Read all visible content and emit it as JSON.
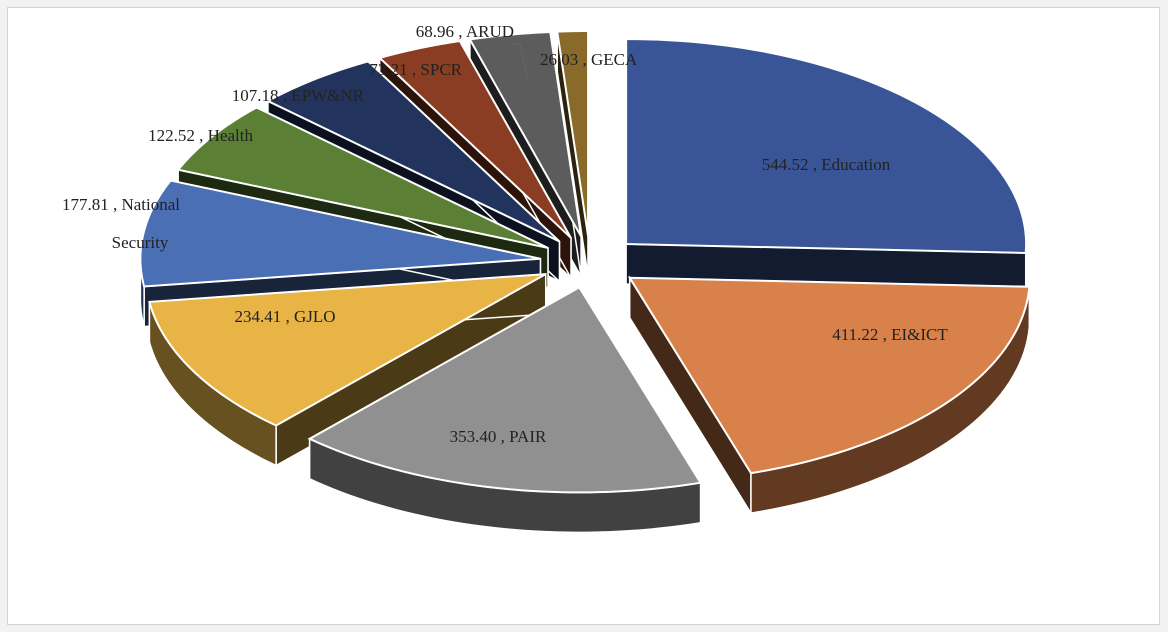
{
  "chart_data": {
    "type": "pie",
    "style": "3d-exploded",
    "title": "",
    "separator": " , ",
    "slices": [
      {
        "label": "Education",
        "value": 544.52,
        "color": "#3a5597"
      },
      {
        "label": "EI&ICT",
        "value": 411.22,
        "color": "#d9814a"
      },
      {
        "label": "PAIR",
        "value": 353.4,
        "color": "#909090"
      },
      {
        "label": "GJLO",
        "value": 234.41,
        "color": "#e8b446"
      },
      {
        "label": "National Security",
        "value": 177.81,
        "color": "#4a6fb5"
      },
      {
        "label": "Health",
        "value": 122.52,
        "color": "#5a7f35"
      },
      {
        "label": "EPW&NR",
        "value": 107.18,
        "color": "#22345e"
      },
      {
        "label": "SPCR",
        "value": 73.21,
        "color": "#8a3d22"
      },
      {
        "label": "ARUD",
        "value": 68.96,
        "color": "#5c5c5c"
      },
      {
        "label": "GECA",
        "value": 26.03,
        "color": "#8a6a2a"
      }
    ]
  }
}
